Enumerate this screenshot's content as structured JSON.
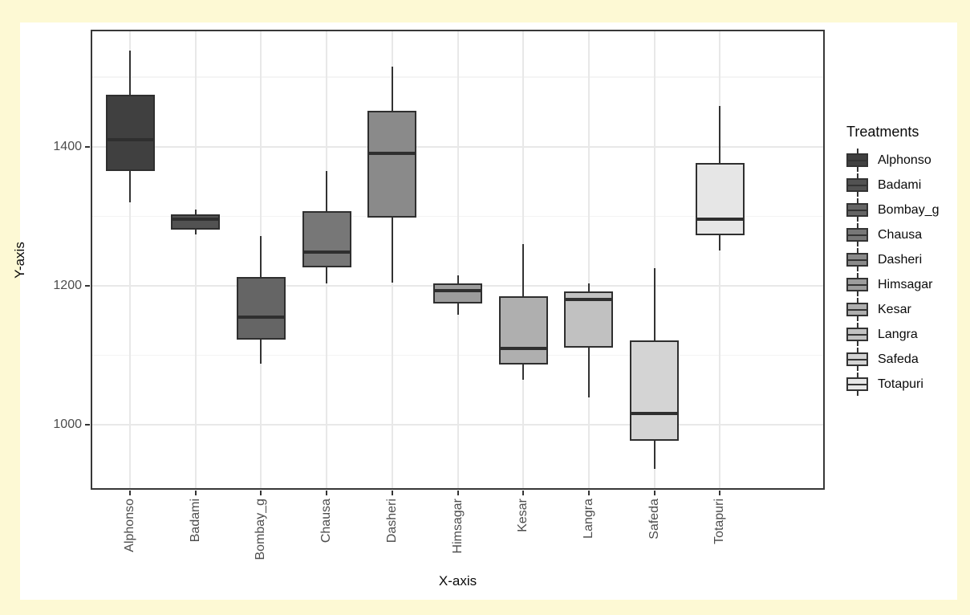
{
  "figure": {
    "outer_background": "#FDF9D4",
    "figure_background": "#FFFFFF",
    "panel_background": "#FFFFFF",
    "panel_border_color": "#383838",
    "grid_major_color": "#E8E8E8",
    "grid_minor_color": "#F4F4F4",
    "box_outline_color": "#2F2F2F",
    "axis_tick_color": "#333333",
    "axis_text_color": "#4D4D4D",
    "title_color": "#0A0A0A"
  },
  "chart_data": {
    "type": "boxplot",
    "title": "",
    "xlabel": "X-axis",
    "ylabel": "Y-axis",
    "legend_title": "Treatments",
    "legend_position": "right",
    "grid": true,
    "x_tick_rotation": 90,
    "ylim": [
      907,
      1568
    ],
    "y_major_ticks": [
      1000,
      1200,
      1400
    ],
    "y_minor_ticks": [
      1100,
      1300,
      1500
    ],
    "categories": [
      "Alphonso",
      "Badami",
      "Bombay_g",
      "Chausa",
      "Dasheri",
      "Himsagar",
      "Kesar",
      "Langra",
      "Safeda",
      "Totapuri"
    ],
    "series": [
      {
        "name": "Alphonso",
        "fill": "#404040",
        "min": 1320,
        "q1": 1365,
        "median": 1410,
        "q3": 1475,
        "max": 1538
      },
      {
        "name": "Badami",
        "fill": "#525252",
        "min": 1274,
        "q1": 1281,
        "median": 1296,
        "q3": 1303,
        "max": 1310
      },
      {
        "name": "Bombay_g",
        "fill": "#656565",
        "min": 1088,
        "q1": 1123,
        "median": 1155,
        "q3": 1213,
        "max": 1272
      },
      {
        "name": "Chausa",
        "fill": "#777777",
        "min": 1204,
        "q1": 1227,
        "median": 1249,
        "q3": 1307,
        "max": 1365
      },
      {
        "name": "Dasheri",
        "fill": "#8A8A8A",
        "min": 1205,
        "q1": 1298,
        "median": 1390,
        "q3": 1452,
        "max": 1515
      },
      {
        "name": "Himsagar",
        "fill": "#9C9C9C",
        "min": 1158,
        "q1": 1175,
        "median": 1193,
        "q3": 1203,
        "max": 1215
      },
      {
        "name": "Kesar",
        "fill": "#AFAFAF",
        "min": 1065,
        "q1": 1087,
        "median": 1110,
        "q3": 1185,
        "max": 1260
      },
      {
        "name": "Langra",
        "fill": "#C1C1C1",
        "min": 1040,
        "q1": 1111,
        "median": 1180,
        "q3": 1192,
        "max": 1204
      },
      {
        "name": "Safeda",
        "fill": "#D4D4D4",
        "min": 937,
        "q1": 977,
        "median": 1017,
        "q3": 1121,
        "max": 1225
      },
      {
        "name": "Totapuri",
        "fill": "#E6E6E6",
        "min": 1251,
        "q1": 1273,
        "median": 1296,
        "q3": 1377,
        "max": 1458
      }
    ]
  }
}
